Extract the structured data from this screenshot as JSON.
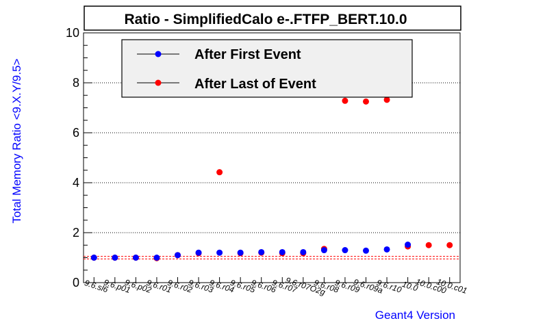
{
  "chart_data": {
    "type": "scatter",
    "title": "Ratio - SimplifiedCalo e-.FTFP_BERT.10.0",
    "xlabel": "Geant4 Version",
    "ylabel": "Total Memory Ratio <9.X.Y/9.5>",
    "ylim": [
      0,
      10
    ],
    "yticks": [
      "0",
      "2",
      "4",
      "6",
      "8",
      "10"
    ],
    "grid": true,
    "legend_position": "top",
    "categories": [
      "9.6.sl6",
      "9.6.p01",
      "9.6.p02",
      "9.6.r01",
      "9.6.r02",
      "9.6.r03",
      "9.6.r04",
      "9.6.r05",
      "9.6.r06",
      "9.6.r07",
      "9.6.r07O2g",
      "9.6.r08",
      "9.6.r09",
      "9.6.r09a",
      "9.6.r10",
      "10.0",
      "10.0.c00",
      "10.0.c01"
    ],
    "series": [
      {
        "name": "After First Event",
        "color": "#0000ff",
        "values": [
          1.0,
          1.0,
          1.0,
          1.0,
          1.1,
          1.2,
          1.2,
          1.2,
          1.22,
          1.22,
          1.22,
          1.3,
          1.3,
          1.28,
          1.33,
          1.52,
          null,
          null
        ]
      },
      {
        "name": "After Last of Event",
        "color": "#ff0000",
        "values": [
          1.0,
          1.0,
          1.0,
          0.98,
          1.1,
          1.18,
          4.42,
          1.18,
          1.2,
          1.18,
          1.18,
          1.35,
          7.28,
          7.25,
          7.32,
          1.45,
          1.5,
          1.5
        ]
      }
    ],
    "reference_lines": [
      {
        "y": 1.05,
        "color": "#ff0000",
        "style": "dashed"
      },
      {
        "y": 0.95,
        "color": "#ff0000",
        "style": "dashed"
      }
    ]
  }
}
